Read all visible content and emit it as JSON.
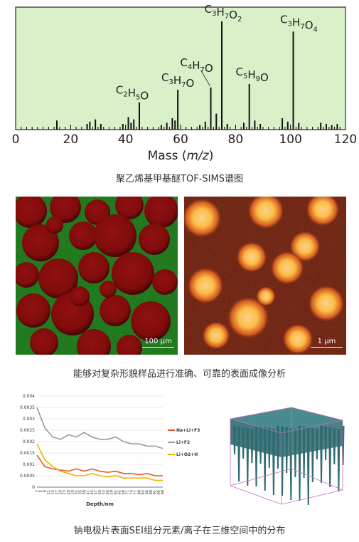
{
  "spectrum": {
    "caption": "聚乙烯基甲基醚TOF-SIMS谱图",
    "colors": {
      "background": "#d9f0c8",
      "axis": "#000000",
      "peaks": "#111111"
    }
  },
  "images": {
    "caption": "能够对复杂形貌样品进行准确、可靠的表面成像分析",
    "left_scale": "100 μm",
    "right_scale": "1 μm",
    "colors": {
      "green": "#2fa82a",
      "red": "#b01010",
      "dark_red": "#3a0505",
      "yellow": "#ffd84a"
    }
  },
  "depth": {
    "caption": "钠电极片表面SEI组分元素/离子在三维空间中的分布",
    "cube_colors": {
      "body": "#2f6b70",
      "top": "#4a8c8e",
      "edges": "#c56fc5"
    }
  },
  "chart_data": [
    {
      "type": "bar",
      "title": "",
      "xlabel": "Mass (m/z)",
      "ylabel": "",
      "xlim": [
        0,
        120
      ],
      "xticks": [
        "0",
        "20",
        "40",
        "60",
        "80",
        "100",
        "120"
      ],
      "peaks": [
        {
          "x": 15,
          "y": 0.08
        },
        {
          "x": 26,
          "y": 0.05
        },
        {
          "x": 27,
          "y": 0.07
        },
        {
          "x": 29,
          "y": 0.09
        },
        {
          "x": 31,
          "y": 0.05
        },
        {
          "x": 39,
          "y": 0.05
        },
        {
          "x": 41,
          "y": 0.11
        },
        {
          "x": 42,
          "y": 0.06
        },
        {
          "x": 43,
          "y": 0.09
        },
        {
          "x": 45,
          "y": 0.24,
          "label": "C2H5O"
        },
        {
          "x": 53,
          "y": 0.04
        },
        {
          "x": 55,
          "y": 0.06
        },
        {
          "x": 57,
          "y": 0.1
        },
        {
          "x": 58,
          "y": 0.08
        },
        {
          "x": 59,
          "y": 0.35,
          "label": "C3H7O"
        },
        {
          "x": 67,
          "y": 0.04
        },
        {
          "x": 69,
          "y": 0.07
        },
        {
          "x": 71,
          "y": 0.37,
          "label": "C4H7O"
        },
        {
          "x": 73,
          "y": 0.14
        },
        {
          "x": 75,
          "y": 0.95,
          "label": "C3H7O2"
        },
        {
          "x": 77,
          "y": 0.05
        },
        {
          "x": 83,
          "y": 0.06
        },
        {
          "x": 85,
          "y": 0.4,
          "label": "C5H9O"
        },
        {
          "x": 87,
          "y": 0.08
        },
        {
          "x": 89,
          "y": 0.05
        },
        {
          "x": 97,
          "y": 0.1
        },
        {
          "x": 99,
          "y": 0.07
        },
        {
          "x": 101,
          "y": 0.86,
          "label": "C3H7O4"
        },
        {
          "x": 103,
          "y": 0.06
        },
        {
          "x": 111,
          "y": 0.06
        },
        {
          "x": 113,
          "y": 0.05
        },
        {
          "x": 115,
          "y": 0.04
        },
        {
          "x": 117,
          "y": 0.05
        }
      ]
    },
    {
      "type": "line",
      "title": "",
      "xlabel": "Depth/nm",
      "ylabel": "",
      "ylim": [
        0,
        0.004
      ],
      "yticks": [
        "0.004",
        "0.0035",
        "0.003",
        "0.0025",
        "0.002",
        "0.0015",
        "0.001",
        "0.0005",
        "0"
      ],
      "x": [
        2,
        8,
        14,
        20,
        26,
        32,
        38,
        44,
        50,
        56,
        62,
        68,
        74,
        80,
        86,
        92,
        98
      ],
      "xticks": [
        "2",
        "5",
        "8",
        "11",
        "14",
        "17",
        "20",
        "23",
        "26",
        "29",
        "32",
        "35",
        "38",
        "41",
        "44",
        "47",
        "50",
        "53",
        "56",
        "59",
        "62",
        "65",
        "68",
        "71",
        "74",
        "77",
        "80",
        "83",
        "86",
        "89",
        "92",
        "95",
        "98"
      ],
      "series": [
        {
          "name": "Na+Li+F3",
          "color": "#e8562a",
          "values": [
            0.0014,
            0.0009,
            0.0008,
            0.00075,
            0.0007,
            0.0008,
            0.0007,
            0.0008,
            0.0007,
            0.00065,
            0.0007,
            0.0006,
            0.0006,
            0.00055,
            0.0006,
            0.0005,
            0.0005
          ]
        },
        {
          "name": "Li+F2",
          "color": "#999999",
          "values": [
            0.0035,
            0.0026,
            0.0022,
            0.0021,
            0.0023,
            0.0022,
            0.0024,
            0.0022,
            0.0021,
            0.0021,
            0.0022,
            0.002,
            0.0019,
            0.0019,
            0.0018,
            0.0018,
            0.0017
          ]
        },
        {
          "name": "Li+O2+H",
          "color": "#f0b400",
          "values": [
            0.0019,
            0.0012,
            0.0009,
            0.0007,
            0.0006,
            0.0005,
            0.0005,
            0.0006,
            0.0005,
            0.00045,
            0.0005,
            0.0004,
            0.0004,
            0.0004,
            0.0004,
            0.0003,
            0.0003
          ]
        }
      ],
      "legend": "right"
    }
  ]
}
